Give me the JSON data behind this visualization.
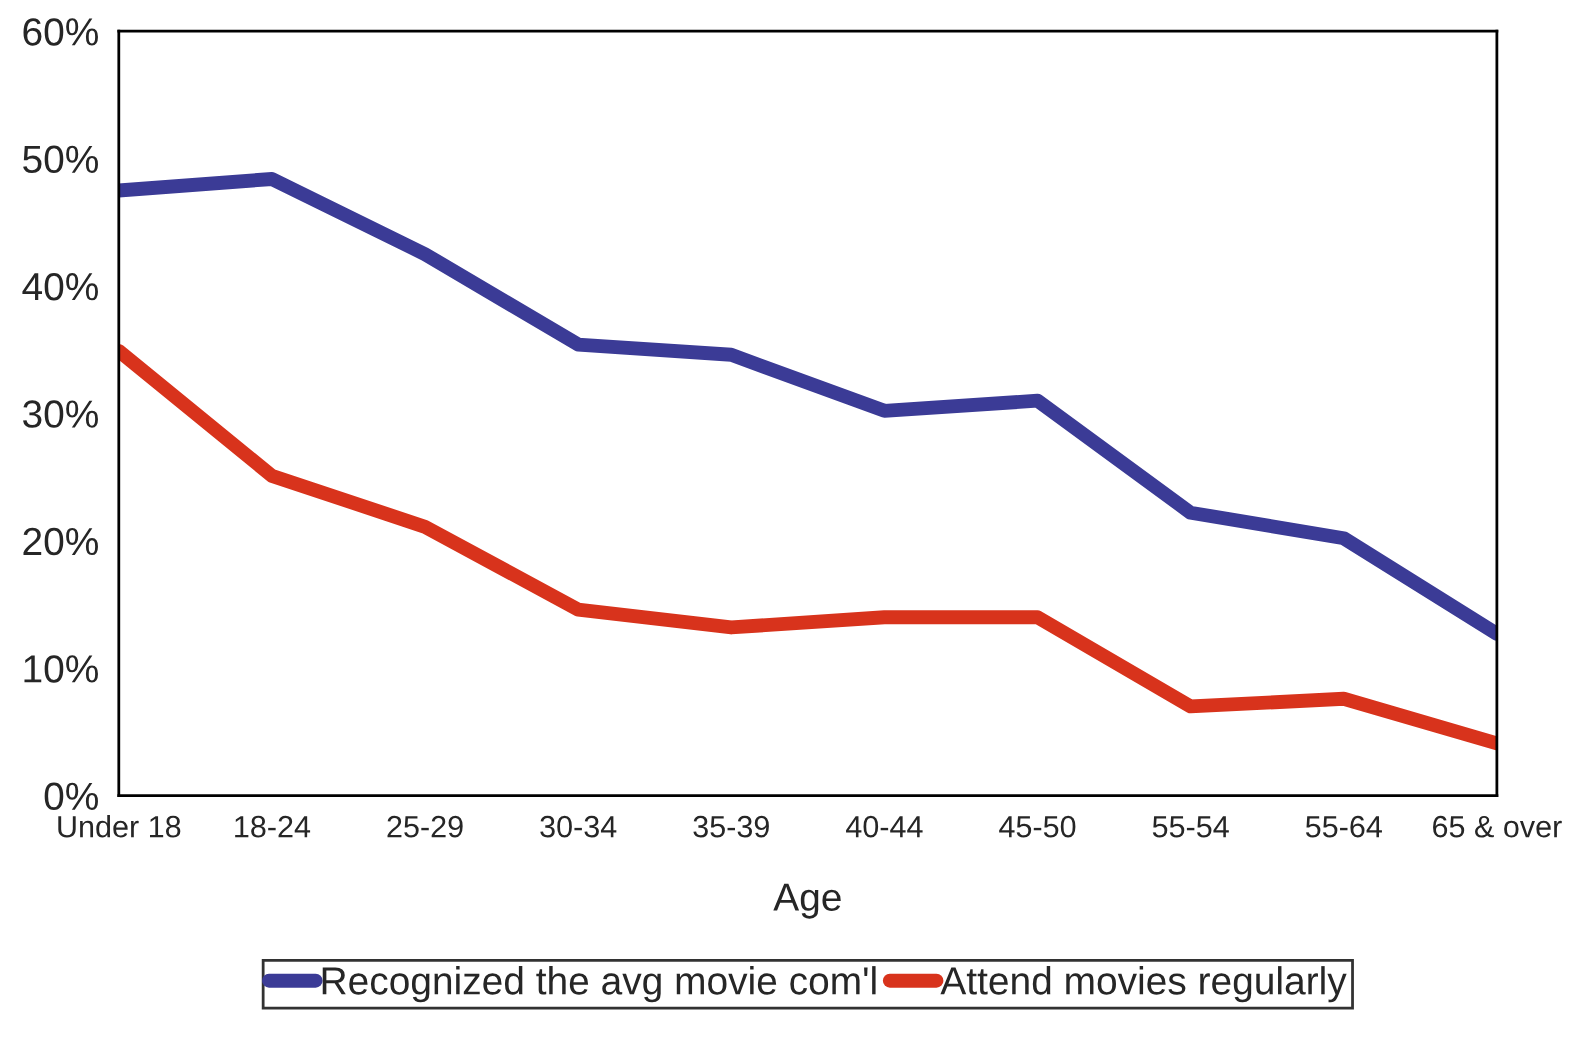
{
  "chart_data": {
    "type": "line",
    "xlabel": "Age",
    "categories": [
      "Under 18",
      "18-24",
      "25-29",
      "30-34",
      "35-39",
      "40-44",
      "45-50",
      "55-54",
      "55-64",
      "65 & over"
    ],
    "series": [
      {
        "name": "Recognized the avg movie com'l",
        "color": "#3b3b96",
        "values": [
          47.5,
          48.4,
          42.5,
          35.4,
          34.6,
          30.2,
          31.0,
          22.2,
          20.2,
          12.7
        ]
      },
      {
        "name": "Attend movies regularly",
        "color": "#d8331c",
        "values": [
          34.9,
          25.1,
          21.1,
          14.6,
          13.2,
          14.0,
          14.0,
          7.0,
          7.6,
          4.1
        ]
      }
    ],
    "ylim": [
      0,
      60
    ],
    "yticks": [
      {
        "value": 0,
        "label": "0%"
      },
      {
        "value": 10,
        "label": "10%"
      },
      {
        "value": 20,
        "label": "20%"
      },
      {
        "value": 30,
        "label": "30%"
      },
      {
        "value": 40,
        "label": "40%"
      },
      {
        "value": 50,
        "label": "50%"
      },
      {
        "value": 60,
        "label": "60%"
      }
    ],
    "grid": false,
    "legend": "bottom",
    "marker": "none",
    "line_style": "solid"
  }
}
